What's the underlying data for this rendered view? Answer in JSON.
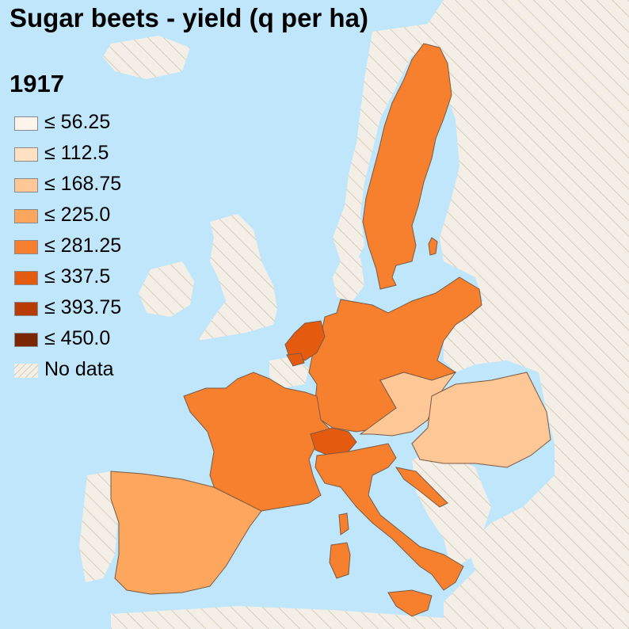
{
  "title": "Sugar beets - yield (q per ha)",
  "year": "1917",
  "colors": {
    "sea": "#bfe6fb",
    "land_other": "#f3efe6",
    "hatch": "#cbbfa8"
  },
  "legend": [
    {
      "label": "≤ 56.25",
      "color": "#fff4ea"
    },
    {
      "label": "≤ 112.5",
      "color": "#fee0c2"
    },
    {
      "label": "≤ 168.75",
      "color": "#fdc796"
    },
    {
      "label": "≤ 225.0",
      "color": "#fca65e"
    },
    {
      "label": "≤ 281.25",
      "color": "#f6802d"
    },
    {
      "label": "≤ 337.5",
      "color": "#e45a0e"
    },
    {
      "label": "≤ 393.75",
      "color": "#b83b04"
    },
    {
      "label": "≤ 450.0",
      "color": "#7b2503"
    },
    {
      "label": "No data",
      "color": "hatch"
    }
  ],
  "regions": [
    {
      "id": "sweden",
      "class": 4
    },
    {
      "id": "germany",
      "class": 4
    },
    {
      "id": "france",
      "class": 4
    },
    {
      "id": "italy",
      "class": 4
    },
    {
      "id": "spain",
      "class": 3
    },
    {
      "id": "netherlands",
      "class": 5
    },
    {
      "id": "switzerland",
      "class": 5
    },
    {
      "id": "austria",
      "class": 2
    },
    {
      "id": "hungary",
      "class": 2
    },
    {
      "id": "croatia",
      "class": 2
    },
    {
      "id": "belgium",
      "class": 8
    }
  ]
}
